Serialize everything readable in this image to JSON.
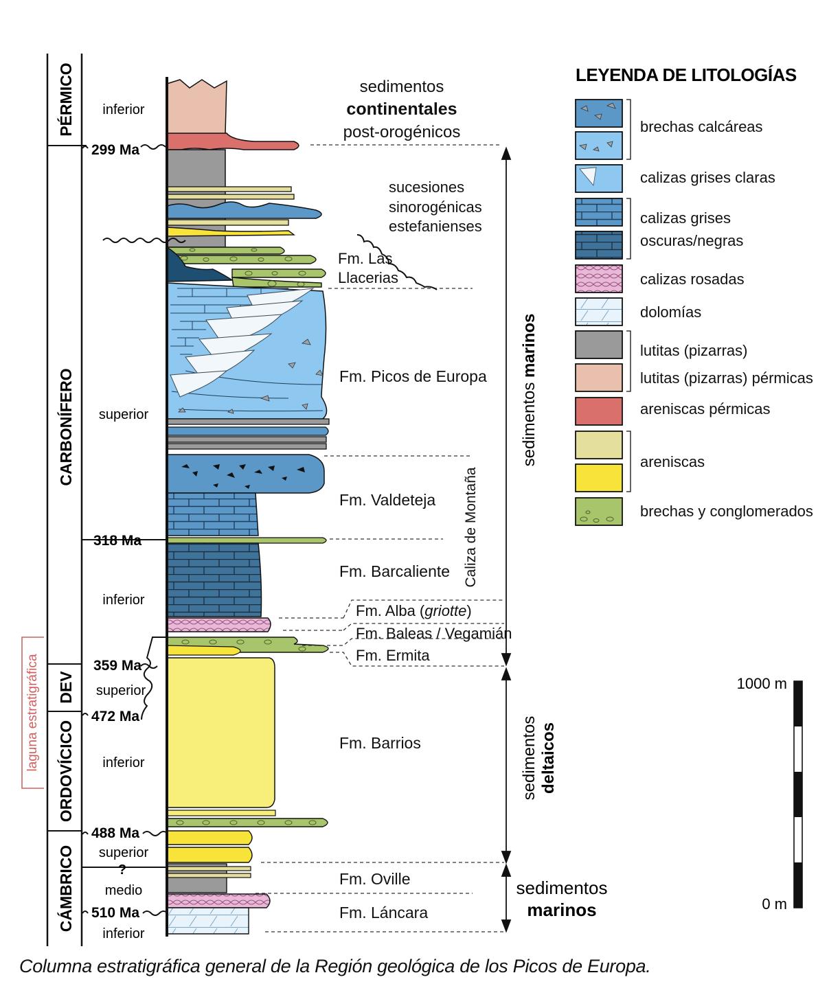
{
  "periods": {
    "permico": "PÉRMICO",
    "carbonifero": "CARBONÍFERO",
    "dev": "DEV",
    "ordovicico": "ORDOVÍCICO",
    "cambrico": "CÁMBRICO"
  },
  "epochs": {
    "permico_inferior": "inferior",
    "carb_superior": "superior",
    "carb_inferior": "inferior",
    "dev_superior": "superior",
    "ord_inferior": "inferior",
    "camb_superior": "superior",
    "camb_medio": "medio",
    "camb_inferior": "inferior",
    "question": "?"
  },
  "ages": {
    "a299": "299 Ma",
    "a318": "318 Ma",
    "a359": "359 Ma",
    "a472": "472 Ma",
    "a488": "488 Ma",
    "a510": "510 Ma"
  },
  "hiatus_label": "laguna estratigráfica",
  "column_notes": {
    "continental_1": "sedimentos",
    "continental_2": "continentales",
    "continental_3": "post-orogénicos",
    "sino_1": "sucesiones",
    "sino_2": "sinorogénicas",
    "sino_3": "estefanienses"
  },
  "formations": {
    "las_llacerias_1": "Fm. Las",
    "las_llacerias_2": "Llacerias",
    "picos": "Fm. Picos de Europa",
    "valdeteja": "Fm. Valdeteja",
    "barcaliente": "Fm. Barcaliente",
    "alba_pre": "Fm. Alba (",
    "alba_it": "griotte",
    "alba_post": ")",
    "baleas": "Fm. Baleas / Vegamián",
    "ermita": "Fm. Ermita",
    "barrios": "Fm. Barrios",
    "oville": "Fm. Oville",
    "lancara": "Fm. Láncara",
    "caliza_montana": "Caliza de Montaña"
  },
  "sediment_groups": {
    "marinos_pre": "sedimentos ",
    "marinos_bold": "marinos",
    "deltaicos_1": "sedimentos",
    "deltaicos_2": "deltaicos",
    "marinos2_1": "sedimentos",
    "marinos2_2": "marinos"
  },
  "legend": {
    "title": "LEYENDA DE LITOLOGÍAS",
    "items": {
      "brechas_calcareas": "brechas calcáreas",
      "calizas_grises_claras": "calizas grises claras",
      "calizas_oscuras_1": "calizas grises",
      "calizas_oscuras_2": "oscuras/negras",
      "calizas_rosadas": "calizas rosadas",
      "dolomias": "dolomías",
      "lutitas": "lutitas (pizarras)",
      "lutitas_permicas": "lutitas (pizarras) pérmicas",
      "areniscas_permicas": "areniscas pérmicas",
      "areniscas": "areniscas",
      "brechas_conglomerados": "brechas y conglomerados"
    }
  },
  "scale": {
    "top": "1000 m",
    "bottom": "0 m"
  },
  "caption": "Columna estratigráfica general de la Región geológica de los Picos de Europa.",
  "colors": {
    "grey_shale": "#9a9a9a",
    "permian_shale": "#e8c0ad",
    "permian_sandstone": "#d9706b",
    "light_limestone": "#8ec7ef",
    "blue_limestone": "#5b98c8",
    "dark_limestone": "#3b6f99",
    "pink_limestone": "#e8b9d6",
    "dolomite": "#e6f2fb",
    "sandstone": "#f8ee7a",
    "sandstone_pale": "#e5df9e",
    "breccia_green": "#a9c56b",
    "hiatus_red": "#d06060"
  }
}
